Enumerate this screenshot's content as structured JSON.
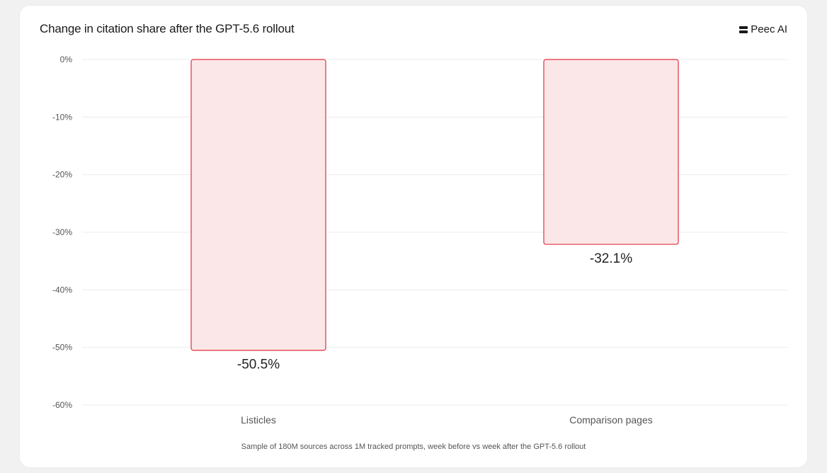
{
  "title": "Change in citation share after the GPT-5.6 rollout",
  "brand": {
    "name": "Peec AI",
    "icon": "peec-logo-icon"
  },
  "footnote": "Sample of 180M sources across 1M tracked prompts, week before vs week after the GPT-5.6 rollout",
  "colors": {
    "bar_fill": "#fbe7e8",
    "bar_stroke": "#e0303f",
    "grid": "#ececec",
    "tick_text": "#555555",
    "label_text": "#222222"
  },
  "chart_data": {
    "type": "bar",
    "title": "Change in citation share after the GPT-5.6 rollout",
    "categories": [
      "Listicles",
      "Comparison pages"
    ],
    "values": [
      -50.5,
      -32.1
    ],
    "data_labels": [
      "-50.5%",
      "-32.1%"
    ],
    "ylim": [
      -60,
      0
    ],
    "yticks": [
      0,
      -10,
      -20,
      -30,
      -40,
      -50,
      -60
    ],
    "ytick_labels": [
      "0%",
      "-10%",
      "-20%",
      "-30%",
      "-40%",
      "-50%",
      "-60%"
    ],
    "xlabel": "",
    "ylabel": "",
    "grid": true
  }
}
